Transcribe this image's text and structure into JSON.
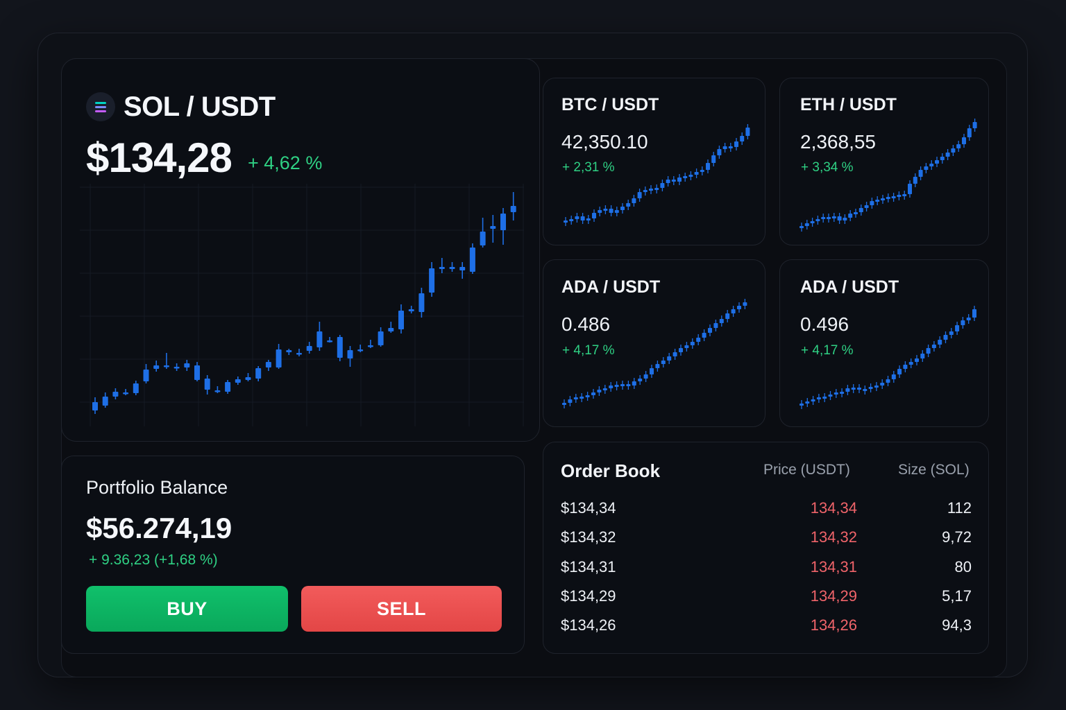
{
  "main": {
    "pair": "SOL / USDT",
    "price": "$134,28",
    "change": "+ 4,62 %",
    "icon": "solana-icon",
    "candles": [
      [
        580,
        592,
        573,
        597
      ],
      [
        585,
        572,
        566,
        588
      ],
      [
        572,
        565,
        560,
        576
      ],
      [
        566,
        566,
        561,
        570
      ],
      [
        567,
        553,
        549,
        570
      ],
      [
        550,
        533,
        525,
        553
      ],
      [
        532,
        527,
        520,
        536
      ],
      [
        528,
        527,
        509,
        532
      ],
      [
        529,
        531,
        524,
        535
      ],
      [
        530,
        524,
        519,
        535
      ],
      [
        527,
        548,
        522,
        550
      ],
      [
        546,
        562,
        541,
        569
      ],
      [
        563,
        563,
        557,
        567
      ],
      [
        565,
        551,
        548,
        568
      ],
      [
        552,
        547,
        543,
        555
      ],
      [
        548,
        544,
        538,
        550
      ],
      [
        546,
        531,
        528,
        550
      ],
      [
        530,
        522,
        519,
        535
      ],
      [
        530,
        504,
        496,
        532
      ],
      [
        505,
        508,
        503,
        512
      ],
      [
        509,
        509,
        503,
        514
      ],
      [
        506,
        499,
        493,
        510
      ],
      [
        501,
        478,
        464,
        506
      ],
      [
        491,
        492,
        486,
        494
      ],
      [
        486,
        516,
        483,
        521
      ],
      [
        517,
        505,
        499,
        529
      ],
      [
        504,
        504,
        497,
        508
      ],
      [
        498,
        498,
        490,
        502
      ],
      [
        498,
        478,
        472,
        500
      ],
      [
        478,
        473,
        464,
        480
      ],
      [
        475,
        448,
        439,
        481
      ],
      [
        449,
        446,
        441,
        452
      ],
      [
        450,
        423,
        415,
        458
      ],
      [
        422,
        387,
        378,
        428
      ],
      [
        385,
        388,
        372,
        394
      ],
      [
        388,
        385,
        378,
        392
      ],
      [
        390,
        385,
        378,
        402
      ],
      [
        392,
        357,
        351,
        395
      ],
      [
        354,
        334,
        314,
        357
      ],
      [
        330,
        326,
        310,
        350
      ],
      [
        332,
        308,
        300,
        353
      ],
      [
        306,
        297,
        277,
        318
      ]
    ]
  },
  "tickers": [
    {
      "pair": "BTC / USDT",
      "price": "42,350.10",
      "change": "+ 2,31 %",
      "series": [
        318,
        316,
        312,
        318,
        315,
        307,
        303,
        301,
        307,
        303,
        298,
        293,
        286,
        277,
        274,
        272,
        271,
        264,
        259,
        262,
        256,
        254,
        252,
        248,
        245,
        235,
        224,
        215,
        211,
        212,
        204,
        196,
        184
      ]
    },
    {
      "pair": "ETH / USDT",
      "price": "2,368,55",
      "change": "+ 3,34 %",
      "series": [
        326,
        322,
        319,
        316,
        313,
        315,
        312,
        318,
        314,
        308,
        306,
        300,
        296,
        290,
        288,
        286,
        284,
        283,
        281,
        280,
        265,
        255,
        245,
        240,
        236,
        231,
        226,
        220,
        214,
        208,
        198,
        185,
        176
      ]
    },
    {
      "pair": "ADA / USDT",
      "price": "0.486",
      "change": "+ 4,17 %",
      "series": [
        581,
        576,
        573,
        572,
        570,
        566,
        562,
        560,
        556,
        555,
        554,
        556,
        550,
        546,
        540,
        531,
        525,
        520,
        514,
        508,
        502,
        498,
        493,
        487,
        480,
        473,
        466,
        460,
        452,
        446,
        441,
        436
      ]
    },
    {
      "pair": "ADA / USDT",
      "price": "0.496",
      "change": "+ 4,17 %",
      "series": [
        582,
        579,
        576,
        573,
        572,
        569,
        566,
        565,
        560,
        559,
        562,
        561,
        558,
        556,
        552,
        547,
        540,
        532,
        526,
        522,
        517,
        510,
        502,
        497,
        490,
        483,
        478,
        469,
        462,
        458,
        446
      ]
    }
  ],
  "portfolio": {
    "title": "Portfolio Balance",
    "balance": "$56.274,19",
    "change": "+ 9.36,23  (+1,68 %)",
    "buy_label": "BUY",
    "sell_label": "SELL"
  },
  "orderbook": {
    "title": "Order Book",
    "col_price": "Price (USDT)",
    "col_size": "Size (SOL)",
    "rows": [
      {
        "total": "$134,34",
        "price": "134,34",
        "size": "112"
      },
      {
        "total": "$134,32",
        "price": "134,32",
        "size": "9,72"
      },
      {
        "total": "$134,31",
        "price": "134,31",
        "size": "80"
      },
      {
        "total": "$134,29",
        "price": "134,29",
        "size": "5,17"
      },
      {
        "total": "$134,26",
        "price": "134,26",
        "size": "94,3"
      }
    ]
  },
  "colors": {
    "candle": "#1e6fe6",
    "positive": "#2fd184",
    "negative": "#f0646a",
    "buy": "#0fbb68",
    "sell": "#ef5252"
  }
}
